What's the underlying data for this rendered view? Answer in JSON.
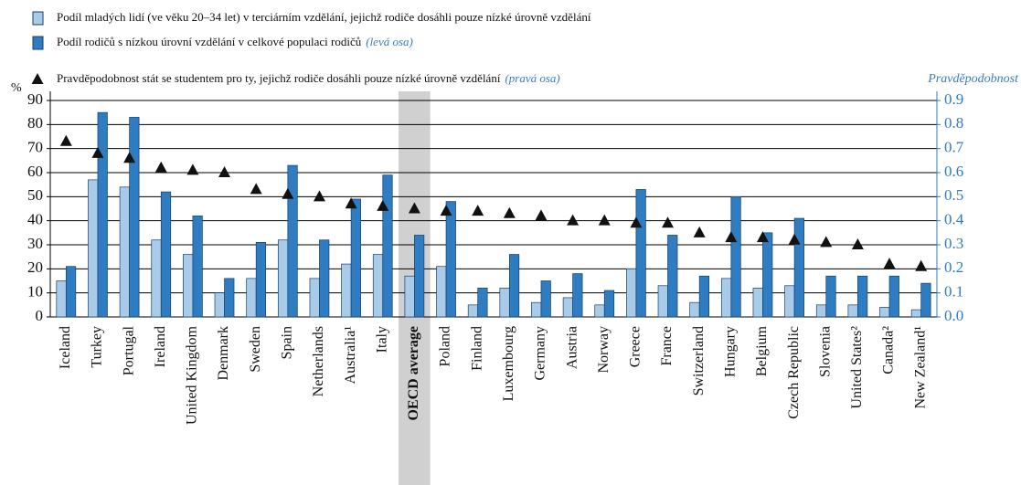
{
  "chart_data": {
    "type": "bar",
    "y_label": "%",
    "y2_label": "Pravděpodobnost",
    "categories": [
      "Iceland",
      "Turkey",
      "Portugal",
      "Ireland",
      "United Kingdom",
      "Denmark",
      "Sweden",
      "Spain",
      "Netherlands",
      "Australia¹",
      "Italy",
      "OECD average",
      "Poland",
      "Finland",
      "Luxembourg",
      "Germany",
      "Austria",
      "Norway",
      "Greece",
      "France",
      "Switzerland",
      "Hungary",
      "Belgium",
      "Czech Republic",
      "Slovenia",
      "United States²",
      "Canada²",
      "New Zealand¹"
    ],
    "highlight_index": 11,
    "series": [
      {
        "name": "Podíl mladých lidí (ve věku 20–34 let) v terciárním vzdělání, jejichž rodiče dosáhli pouze nízké úrovně vzdělání",
        "type": "bar",
        "color": "#a9cbea",
        "values": [
          15,
          57,
          54,
          32,
          26,
          10,
          16,
          32,
          16,
          22,
          26,
          17,
          21,
          5,
          12,
          6,
          8,
          5,
          20,
          13,
          6,
          16,
          12,
          13,
          5,
          5,
          4,
          3
        ]
      },
      {
        "name": "Podíl rodičů s nízkou úrovní vzdělání v celkové populaci rodičů",
        "note": "(levá osa)",
        "type": "bar",
        "color": "#2e7cc2",
        "values": [
          21,
          85,
          83,
          52,
          42,
          16,
          31,
          63,
          32,
          49,
          59,
          34,
          48,
          12,
          26,
          15,
          18,
          11,
          53,
          34,
          17,
          50,
          35,
          41,
          17,
          17,
          17,
          14
        ]
      },
      {
        "name": "Pravděpodobnost stát se studentem pro ty, jejichž rodiče dosáhli pouze nízké úrovně vzdělání",
        "note": "(pravá osa)",
        "type": "scatter",
        "axis": "y2",
        "color": "#111111",
        "values": [
          0.73,
          0.68,
          0.66,
          0.62,
          0.61,
          0.6,
          0.53,
          0.51,
          0.5,
          0.47,
          0.46,
          0.45,
          0.44,
          0.44,
          0.43,
          0.42,
          0.4,
          0.4,
          0.39,
          0.39,
          0.35,
          0.33,
          0.33,
          0.32,
          0.31,
          0.3,
          0.22,
          0.21
        ]
      }
    ],
    "ylim": [
      0,
      90
    ],
    "yticks": [
      0,
      10,
      20,
      30,
      40,
      50,
      60,
      70,
      80,
      90
    ],
    "y2lim": [
      0,
      0.9
    ],
    "y2ticks": [
      {
        "value": 0,
        "label": "0.0"
      },
      0.1,
      0.2,
      0.3,
      0.4,
      0.5,
      0.6,
      0.7,
      0.8,
      0.9
    ],
    "grid": true
  }
}
